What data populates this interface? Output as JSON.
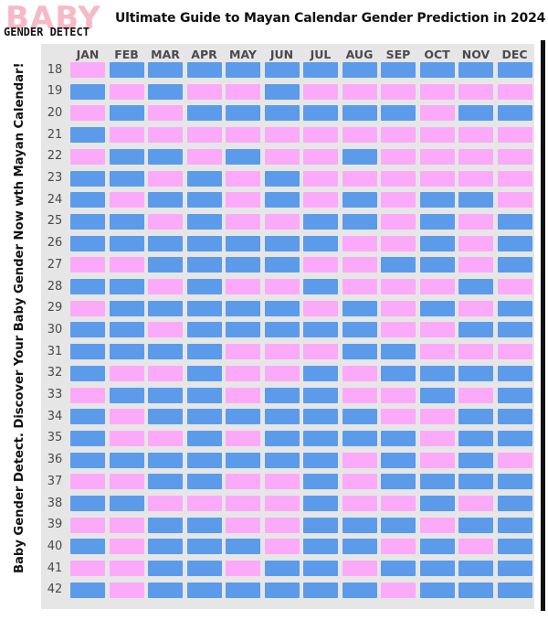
{
  "logo": {
    "big_text": "BABY",
    "small_text": "GENDER DETECT"
  },
  "title": "Ultimate Guide to Mayan Calendar Gender Prediction in 2024",
  "side_text": "Baby Gender Detect. Discover Your Baby Gender Now wth Mayan Calendar!",
  "colors": {
    "boy": "#5b9bea",
    "girl": "#fbaaf9",
    "background": "#e6e6e6"
  },
  "months": [
    "JAN",
    "FEB",
    "MAR",
    "APR",
    "MAY",
    "JUN",
    "JUL",
    "AUG",
    "SEP",
    "OCT",
    "NOV",
    "DEC"
  ],
  "ages": [
    "18",
    "19",
    "20",
    "21",
    "22",
    "23",
    "24",
    "25",
    "26",
    "27",
    "28",
    "29",
    "30",
    "31",
    "32",
    "33",
    "34",
    "35",
    "36",
    "37",
    "38",
    "39",
    "40",
    "41",
    "42"
  ],
  "grid": [
    [
      "g",
      "b",
      "b",
      "b",
      "b",
      "b",
      "b",
      "b",
      "b",
      "b",
      "b",
      "b"
    ],
    [
      "b",
      "g",
      "b",
      "g",
      "g",
      "b",
      "g",
      "g",
      "g",
      "g",
      "g",
      "g"
    ],
    [
      "g",
      "b",
      "g",
      "b",
      "b",
      "b",
      "b",
      "b",
      "b",
      "g",
      "b",
      "b"
    ],
    [
      "b",
      "g",
      "g",
      "g",
      "g",
      "g",
      "g",
      "g",
      "g",
      "g",
      "g",
      "g"
    ],
    [
      "g",
      "b",
      "b",
      "g",
      "b",
      "g",
      "g",
      "b",
      "g",
      "g",
      "g",
      "g"
    ],
    [
      "b",
      "b",
      "g",
      "b",
      "g",
      "b",
      "g",
      "g",
      "g",
      "g",
      "g",
      "g"
    ],
    [
      "b",
      "g",
      "b",
      "b",
      "g",
      "b",
      "g",
      "b",
      "g",
      "b",
      "b",
      "g"
    ],
    [
      "b",
      "b",
      "g",
      "b",
      "g",
      "g",
      "b",
      "b",
      "g",
      "b",
      "g",
      "b"
    ],
    [
      "b",
      "b",
      "b",
      "b",
      "b",
      "b",
      "b",
      "g",
      "g",
      "b",
      "g",
      "b"
    ],
    [
      "g",
      "g",
      "b",
      "b",
      "b",
      "b",
      "g",
      "g",
      "b",
      "b",
      "g",
      "b"
    ],
    [
      "b",
      "b",
      "g",
      "b",
      "g",
      "g",
      "b",
      "g",
      "g",
      "g",
      "b",
      "g"
    ],
    [
      "g",
      "b",
      "b",
      "b",
      "b",
      "b",
      "g",
      "b",
      "g",
      "b",
      "g",
      "b"
    ],
    [
      "b",
      "b",
      "g",
      "b",
      "b",
      "b",
      "b",
      "b",
      "g",
      "g",
      "b",
      "b"
    ],
    [
      "b",
      "b",
      "b",
      "b",
      "g",
      "g",
      "g",
      "b",
      "b",
      "g",
      "g",
      "g"
    ],
    [
      "b",
      "g",
      "g",
      "b",
      "g",
      "g",
      "b",
      "g",
      "b",
      "b",
      "b",
      "b"
    ],
    [
      "g",
      "b",
      "b",
      "b",
      "g",
      "b",
      "b",
      "g",
      "g",
      "b",
      "g",
      "b"
    ],
    [
      "b",
      "g",
      "b",
      "b",
      "b",
      "b",
      "b",
      "b",
      "g",
      "g",
      "b",
      "b"
    ],
    [
      "b",
      "g",
      "g",
      "b",
      "g",
      "b",
      "b",
      "b",
      "b",
      "g",
      "b",
      "b"
    ],
    [
      "b",
      "b",
      "b",
      "b",
      "b",
      "b",
      "b",
      "g",
      "b",
      "g",
      "b",
      "g"
    ],
    [
      "g",
      "g",
      "b",
      "b",
      "g",
      "g",
      "b",
      "g",
      "b",
      "b",
      "b",
      "b"
    ],
    [
      "b",
      "b",
      "g",
      "g",
      "g",
      "g",
      "b",
      "g",
      "g",
      "b",
      "g",
      "b"
    ],
    [
      "g",
      "g",
      "b",
      "b",
      "g",
      "g",
      "b",
      "b",
      "b",
      "g",
      "b",
      "b"
    ],
    [
      "b",
      "g",
      "b",
      "b",
      "b",
      "g",
      "b",
      "b",
      "g",
      "b",
      "g",
      "b"
    ],
    [
      "g",
      "g",
      "b",
      "b",
      "g",
      "b",
      "b",
      "g",
      "b",
      "b",
      "b",
      "b"
    ],
    [
      "b",
      "g",
      "b",
      "b",
      "b",
      "b",
      "b",
      "b",
      "g",
      "b",
      "b",
      "b"
    ]
  ]
}
